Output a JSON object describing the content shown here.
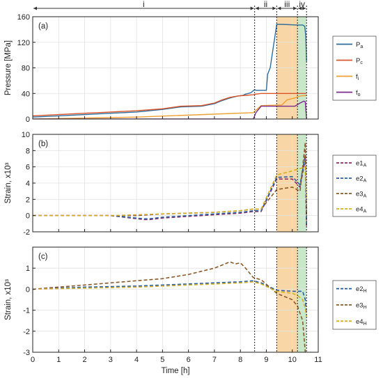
{
  "chart_data": {
    "type": "line",
    "shared_x": {
      "xlabel": "Time [h]",
      "xlim": [
        0,
        11
      ],
      "xticks": [
        "0",
        "1",
        "2",
        "3",
        "4",
        "5",
        "6",
        "7",
        "8",
        "9",
        "10",
        "11"
      ]
    },
    "phases": [
      {
        "label": "i",
        "from": 0,
        "to": 8.55
      },
      {
        "label": "ii",
        "from": 8.55,
        "to": 9.4
      },
      {
        "label": "iii",
        "from": 9.4,
        "to": 10.2
      },
      {
        "label": "iv",
        "from": 10.2,
        "to": 10.55
      }
    ],
    "shaded": [
      {
        "from": 9.4,
        "to": 10.2,
        "color": "#f7cf96"
      },
      {
        "from": 10.2,
        "to": 10.55,
        "color": "#bfe3c0"
      }
    ],
    "vlines": [
      8.55,
      9.4,
      10.2,
      10.55
    ],
    "panels": [
      {
        "label": "(a)",
        "ylabel": "Pressure [MPa]",
        "ylim": [
          0,
          160
        ],
        "yticks": [
          "0",
          "40",
          "80",
          "120",
          "160"
        ],
        "series": [
          {
            "name": "Pa",
            "base": "P",
            "sub": "a",
            "color": "#2f6e9c",
            "dash": "solid",
            "x": [
              0,
              1,
              2,
              3,
              4,
              5,
              5.7,
              6.5,
              7,
              7.3,
              7.6,
              7.9,
              8.1,
              8.2,
              8.3,
              8.4,
              8.55,
              8.6,
              8.7,
              9.0,
              9.05,
              9.15,
              9.4,
              9.6,
              10.2,
              10.4,
              10.48,
              10.52,
              10.55
            ],
            "y": [
              3,
              5,
              7,
              9,
              11,
              15,
              19,
              20,
              24,
              29,
              33,
              36,
              37,
              39,
              40,
              41,
              46,
              45,
              45,
              45,
              70,
              80,
              148,
              148,
              147,
              147,
              145,
              130,
              90
            ]
          },
          {
            "name": "Pc",
            "base": "P",
            "sub": "c",
            "color": "#d9552b",
            "dash": "solid",
            "x": [
              0,
              1,
              2,
              3,
              4,
              5,
              5.7,
              6.5,
              7,
              7.3,
              7.6,
              7.9,
              8.2,
              8.5,
              8.6,
              8.8,
              9.0,
              10.55
            ],
            "y": [
              5,
              7,
              9,
              11,
              13,
              16,
              20,
              21,
              25,
              30,
              34,
              36,
              37,
              38,
              39,
              40,
              40,
              40
            ]
          },
          {
            "name": "fi",
            "base": "f",
            "sub": "i",
            "color": "#f0a030",
            "dash": "solid",
            "x": [
              0,
              4,
              8.5,
              8.8,
              9.6,
              9.8,
              10.1,
              10.3,
              10.55
            ],
            "y": [
              0,
              3,
              10,
              21,
              22,
              30,
              33,
              36,
              37
            ]
          },
          {
            "name": "fo",
            "base": "f",
            "sub": "o",
            "color": "#7a2a8a",
            "dash": "solid",
            "x": [
              0,
              8.5,
              8.6,
              8.8,
              10.1,
              10.3,
              10.45,
              10.5,
              10.55
            ],
            "y": [
              0,
              0,
              10,
              20,
              20,
              25,
              28,
              27,
              0
            ]
          }
        ]
      },
      {
        "label": "(b)",
        "ylabel": "Strain, x10³",
        "ylim": [
          -2,
          10
        ],
        "yticks": [
          "-2",
          "0",
          "2",
          "4",
          "6",
          "8",
          "10"
        ],
        "series": [
          {
            "name": "e1A",
            "base": "e1",
            "sub": "A",
            "color": "#8a2e6a",
            "dash": "5,3",
            "x": [
              0,
              3,
              4.3,
              4.5,
              5,
              6,
              7,
              8,
              8.5,
              8.8,
              9.4,
              10,
              10.3,
              10.5,
              10.55
            ],
            "y": [
              0,
              0,
              -0.5,
              -0.5,
              -0.3,
              -0.1,
              0.1,
              0.3,
              0.5,
              0.5,
              4.5,
              4.5,
              3.5,
              7,
              -1.5
            ]
          },
          {
            "name": "e2A",
            "base": "e2",
            "sub": "A",
            "color": "#2a5fa8",
            "dash": "5,3",
            "x": [
              0,
              3,
              4.3,
              4.5,
              5,
              6,
              7,
              8,
              8.5,
              8.8,
              9.4,
              10,
              10.3,
              10.5,
              10.55
            ],
            "y": [
              0,
              0,
              -0.4,
              -0.4,
              -0.2,
              0,
              0.2,
              0.4,
              0.6,
              0.6,
              4.7,
              4.8,
              3.8,
              7.5,
              -1
            ]
          },
          {
            "name": "e3A",
            "base": "e3",
            "sub": "A",
            "color": "#8a5a2a",
            "dash": "5,3",
            "x": [
              0,
              3,
              4,
              5,
              6,
              7,
              8,
              8.5,
              8.8,
              9.4,
              10,
              10.3,
              10.5,
              10.55
            ],
            "y": [
              0,
              0,
              0,
              0.2,
              0.3,
              0.4,
              0.6,
              0.8,
              0.8,
              3.2,
              3.5,
              3,
              9,
              0
            ]
          },
          {
            "name": "e4A",
            "base": "e4",
            "sub": "A",
            "color": "#d4b020",
            "dash": "5,3",
            "x": [
              0,
              3,
              4,
              5,
              6,
              7,
              8,
              8.5,
              8.8,
              9.4,
              10,
              10.3,
              10.5,
              10.55
            ],
            "y": [
              0,
              0,
              0.1,
              0.2,
              0.3,
              0.4,
              0.6,
              0.8,
              0.8,
              5,
              5.5,
              5.8,
              6,
              2
            ]
          }
        ]
      },
      {
        "label": "(c)",
        "ylabel": "Strain, x10³",
        "ylim": [
          -3,
          2
        ],
        "yticks": [
          "-3",
          "-2",
          "-1",
          "0",
          "1"
        ],
        "series": [
          {
            "name": "e2H",
            "base": "e2",
            "sub": "H",
            "color": "#2a5fa8",
            "dash": "5,3",
            "x": [
              0,
              2,
              4,
              6,
              7,
              8,
              8.5,
              8.8,
              9.4,
              10,
              10.2,
              10.4,
              10.5,
              10.55
            ],
            "y": [
              0,
              0.1,
              0.15,
              0.25,
              0.3,
              0.35,
              0.4,
              0.3,
              -0.05,
              -0.1,
              -0.1,
              -0.1,
              -0.5,
              -1.2
            ]
          },
          {
            "name": "e3H",
            "base": "e3",
            "sub": "H",
            "color": "#8a5a2a",
            "dash": "5,3",
            "x": [
              0,
              2,
              4,
              5,
              6,
              6.5,
              7,
              7.3,
              7.6,
              7.8,
              8,
              8.2,
              8.5,
              8.8,
              9.4,
              10,
              10.2,
              10.4,
              10.5
            ],
            "y": [
              0,
              0.2,
              0.4,
              0.5,
              0.7,
              0.85,
              1.0,
              1.15,
              1.3,
              1.2,
              1.25,
              1.0,
              0.55,
              0.45,
              -0.2,
              -0.5,
              -0.8,
              -1.5,
              -3.0
            ]
          },
          {
            "name": "e4H",
            "base": "e4",
            "sub": "H",
            "color": "#d4b020",
            "dash": "5,3",
            "x": [
              0,
              2,
              4,
              6,
              7,
              8,
              8.5,
              8.8,
              9.4,
              10,
              10.2,
              10.4,
              10.5,
              10.55
            ],
            "y": [
              0,
              0.05,
              0.1,
              0.2,
              0.25,
              0.3,
              0.35,
              0.25,
              -0.1,
              -0.2,
              -0.3,
              -0.5,
              -0.9,
              -1.3
            ]
          }
        ]
      }
    ]
  }
}
